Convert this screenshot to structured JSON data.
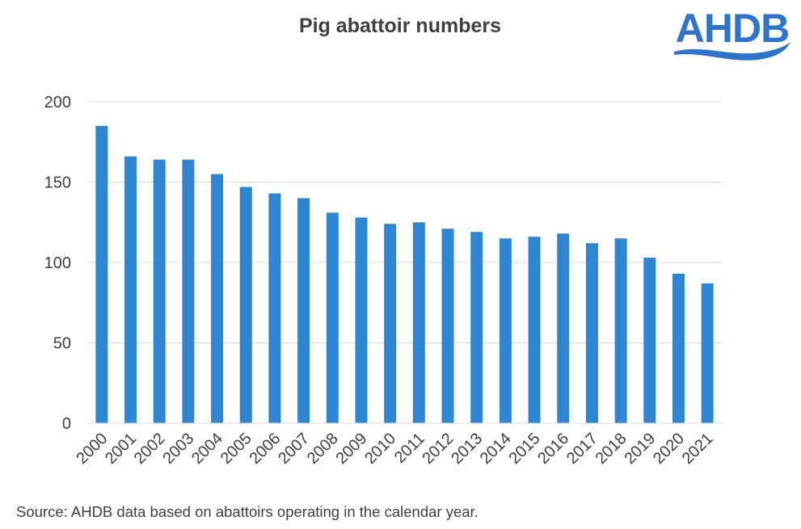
{
  "chart_data": {
    "type": "bar",
    "title": "Pig abattoir numbers",
    "categories": [
      "2000",
      "2001",
      "2002",
      "2003",
      "2004",
      "2005",
      "2006",
      "2007",
      "2008",
      "2009",
      "2010",
      "2011",
      "2012",
      "2013",
      "2014",
      "2015",
      "2016",
      "2017",
      "2018",
      "2019",
      "2020",
      "2021"
    ],
    "values": [
      185,
      166,
      164,
      164,
      155,
      147,
      143,
      140,
      131,
      128,
      124,
      125,
      121,
      119,
      115,
      116,
      118,
      112,
      115,
      103,
      93,
      87
    ],
    "xlabel": "",
    "ylabel": "",
    "ylim": [
      0,
      200
    ],
    "yticks": [
      "0",
      "50",
      "100",
      "150",
      "200"
    ],
    "grid": true,
    "legend": "none",
    "bar_color": "#2e86d3",
    "grid_color": "#d9d9d9"
  },
  "source": "Source:  AHDB data based on abattoirs operating in the calendar year.",
  "logo": {
    "text": "AHDB",
    "color": "#2e75c9"
  }
}
